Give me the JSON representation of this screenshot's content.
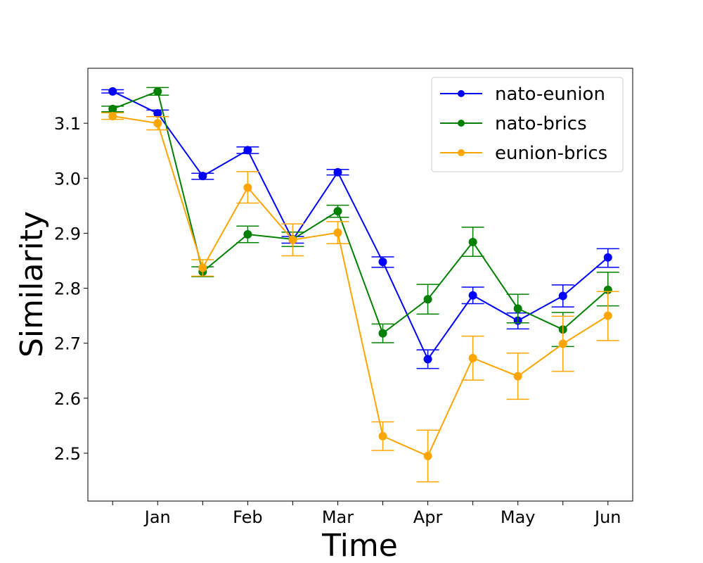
{
  "chart_data": {
    "type": "line",
    "title": "",
    "xlabel": "Time",
    "ylabel": "Similarity",
    "x": [
      0,
      1,
      2,
      3,
      4,
      5,
      6,
      7,
      8,
      9,
      10,
      11
    ],
    "xlim": [
      -0.55,
      11.55
    ],
    "ylim": [
      2.413,
      3.2
    ],
    "xticks": [
      0,
      1,
      2,
      3,
      4,
      5,
      6,
      7,
      8,
      9,
      10,
      11
    ],
    "xtick_labels": [
      "",
      "Jan",
      "",
      "Feb",
      "",
      "Mar",
      "",
      "Apr",
      "",
      "May",
      "",
      "Jun"
    ],
    "yticks": [
      2.5,
      2.6,
      2.7,
      2.8,
      2.9,
      3.0,
      3.1
    ],
    "ytick_labels": [
      "2.5",
      "2.6",
      "2.7",
      "2.8",
      "2.9",
      "3.0",
      "3.1"
    ],
    "grid": false,
    "legend_position": "top-right",
    "series": [
      {
        "name": "nato-eunion",
        "color": "#0000ff",
        "values": [
          3.158,
          3.118,
          3.004,
          3.051,
          2.888,
          3.011,
          2.848,
          2.671,
          2.787,
          2.741,
          2.786,
          2.856
        ],
        "err_low": [
          3.155,
          3.112,
          2.998,
          3.045,
          2.882,
          3.006,
          2.838,
          2.654,
          2.772,
          2.726,
          2.766,
          2.838
        ],
        "err_high": [
          3.161,
          3.124,
          3.009,
          3.057,
          2.894,
          3.016,
          2.857,
          2.688,
          2.802,
          2.755,
          2.806,
          2.872
        ]
      },
      {
        "name": "nato-brics",
        "color": "#008000",
        "values": [
          3.126,
          3.158,
          2.83,
          2.898,
          2.889,
          2.94,
          2.718,
          2.78,
          2.884,
          2.763,
          2.725,
          2.797
        ],
        "err_low": [
          3.121,
          3.151,
          2.821,
          2.883,
          2.876,
          2.929,
          2.701,
          2.753,
          2.858,
          2.737,
          2.694,
          2.768
        ],
        "err_high": [
          3.131,
          3.165,
          2.839,
          2.913,
          2.902,
          2.951,
          2.735,
          2.807,
          2.911,
          2.789,
          2.756,
          2.829
        ]
      },
      {
        "name": "eunion-brics",
        "color": "#ffa500",
        "values": [
          3.113,
          3.1,
          2.837,
          2.983,
          2.888,
          2.901,
          2.531,
          2.495,
          2.673,
          2.64,
          2.699,
          2.75
        ],
        "err_low": [
          3.107,
          3.088,
          2.822,
          2.955,
          2.859,
          2.881,
          2.505,
          2.448,
          2.633,
          2.598,
          2.649,
          2.705
        ],
        "err_high": [
          3.119,
          3.112,
          2.852,
          3.012,
          2.917,
          2.921,
          2.557,
          2.542,
          2.713,
          2.682,
          2.749,
          2.794
        ]
      }
    ]
  }
}
